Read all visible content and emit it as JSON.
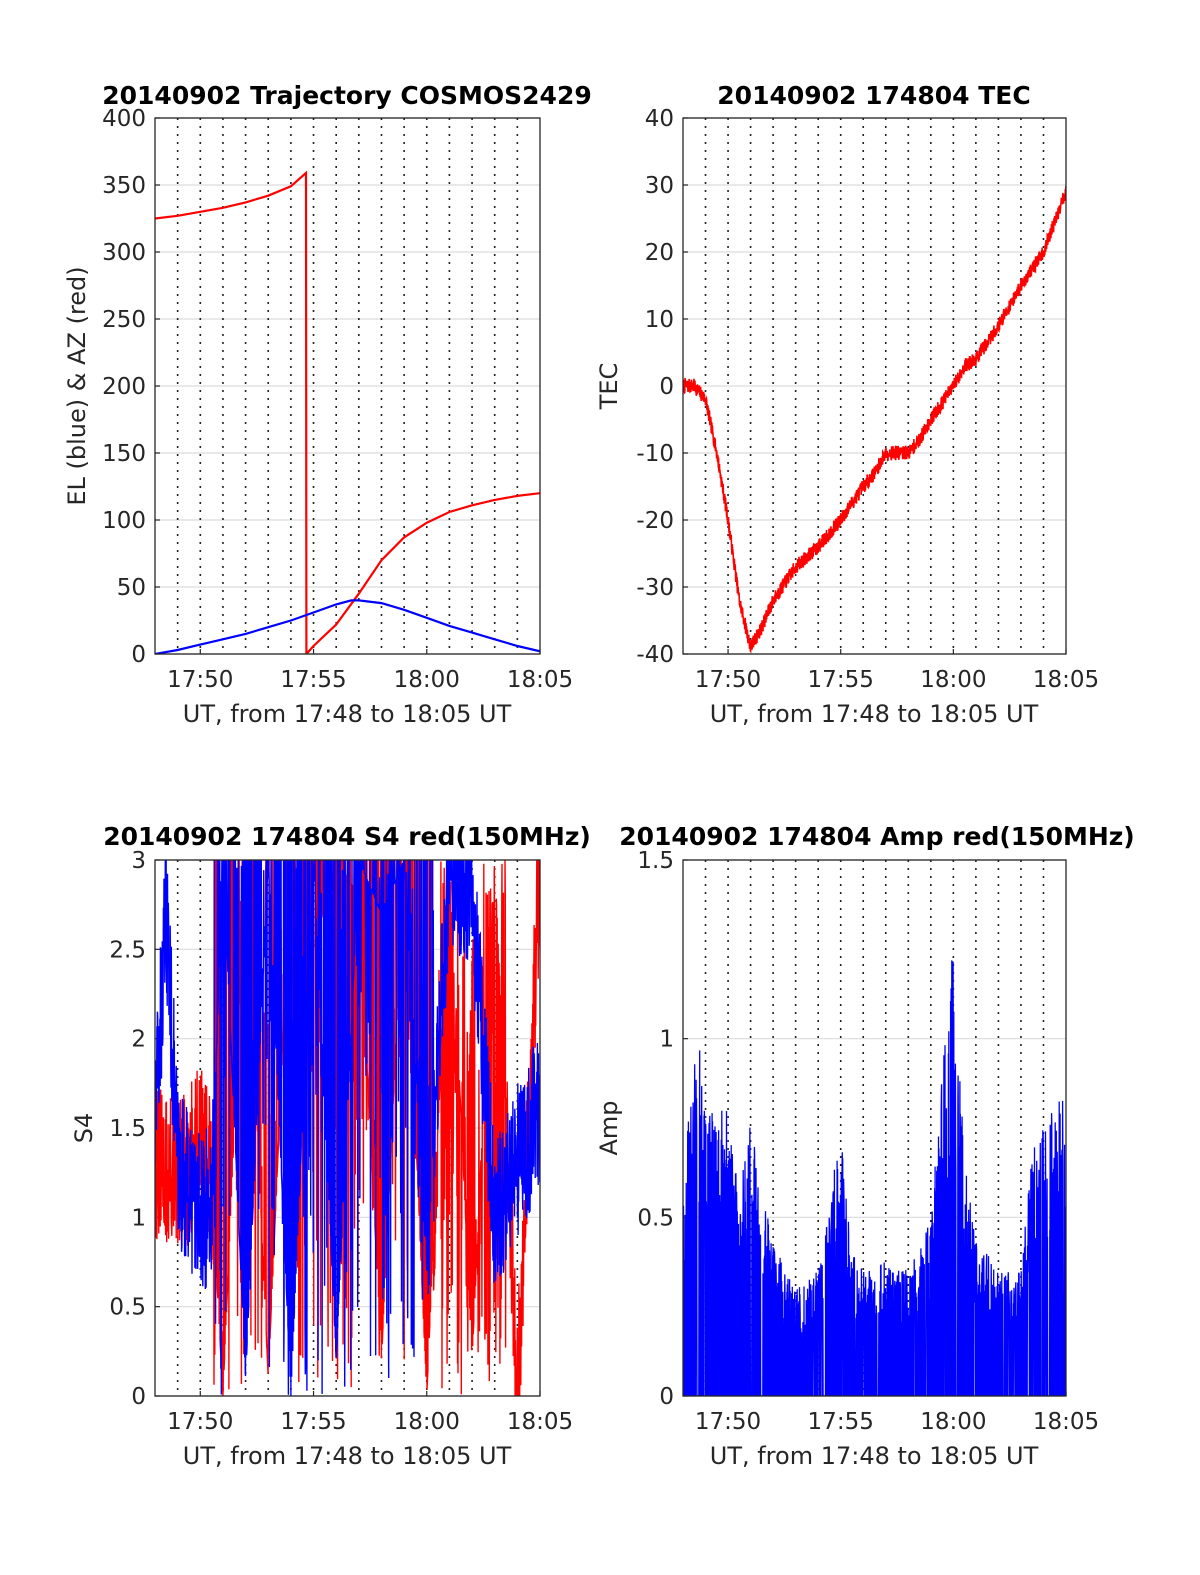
{
  "chart_data": [
    {
      "type": "line",
      "title": "20140902 Trajectory COSMOS2429",
      "xlabel": "UT, from 17:48 to 18:05 UT",
      "ylabel": "EL (blue) & AZ (red)",
      "x_range": [
        "17:48",
        "18:05"
      ],
      "xlim": [
        0,
        17
      ],
      "x_ticks": [
        "17:50",
        "17:55",
        "18:00",
        "18:05"
      ],
      "ylim": [
        0,
        400
      ],
      "y_ticks": [
        "0",
        "50",
        "100",
        "150",
        "200",
        "250",
        "300",
        "350",
        "400"
      ],
      "grid": true,
      "series": [
        {
          "name": "AZ",
          "color": "#ff0000",
          "x": [
            "17:48",
            "17:49",
            "17:50",
            "17:51",
            "17:52",
            "17:53",
            "17:54",
            "17:54:40",
            "17:54:41",
            "17:55",
            "17:56",
            "17:57",
            "17:58",
            "17:59",
            "18:00",
            "18:01",
            "18:02",
            "18:03",
            "18:04",
            "18:05"
          ],
          "values": [
            325,
            327,
            330,
            333,
            337,
            342,
            349,
            359,
            0,
            6,
            22,
            45,
            70,
            87,
            98,
            106,
            111,
            115,
            118,
            120
          ]
        },
        {
          "name": "EL",
          "color": "#0000ff",
          "x": [
            "17:48",
            "17:49",
            "17:50",
            "17:51",
            "17:52",
            "17:53",
            "17:54",
            "17:55",
            "17:56",
            "17:56:40",
            "17:57",
            "17:58",
            "17:59",
            "18:00",
            "18:01",
            "18:02",
            "18:03",
            "18:04",
            "18:05"
          ],
          "values": [
            0,
            3,
            7,
            11,
            15,
            20,
            25,
            31,
            37,
            40,
            40,
            38,
            33,
            27,
            21,
            16,
            11,
            6,
            2
          ]
        }
      ]
    },
    {
      "type": "line",
      "title": "20140902 174804 TEC",
      "xlabel": "UT, from 17:48 to 18:05 UT",
      "ylabel": "TEC",
      "x_range": [
        "17:48",
        "18:05"
      ],
      "xlim": [
        0,
        17
      ],
      "x_ticks": [
        "17:50",
        "17:55",
        "18:00",
        "18:05"
      ],
      "ylim": [
        -40,
        40
      ],
      "y_ticks": [
        "-40",
        "-30",
        "-20",
        "-10",
        "0",
        "10",
        "20",
        "30",
        "40"
      ],
      "grid": true,
      "series": [
        {
          "color": "#ff0000",
          "x": [
            "17:48",
            "17:48:30",
            "17:49",
            "17:49:30",
            "17:50",
            "17:50:30",
            "17:51",
            "17:51:30",
            "17:52",
            "17:53",
            "17:54",
            "17:55",
            "17:56",
            "17:56:30",
            "17:57",
            "17:57:30",
            "17:58",
            "17:58:30",
            "17:59",
            "18:00",
            "18:00:30",
            "18:01",
            "18:02",
            "18:03",
            "18:04",
            "18:05"
          ],
          "values": [
            0,
            0,
            -2,
            -10,
            -20,
            -32,
            -39,
            -36,
            -32,
            -27,
            -24,
            -20,
            -15,
            -13,
            -10,
            -10,
            -10,
            -8,
            -5,
            0,
            3,
            4,
            9,
            15,
            20,
            29
          ]
        }
      ]
    },
    {
      "type": "line",
      "title": "20140902 174804 S4 red(150MHz)",
      "xlabel": "UT, from 17:48 to 18:05 UT",
      "ylabel": "S4",
      "x_range": [
        "17:48",
        "18:05"
      ],
      "xlim": [
        0,
        17
      ],
      "x_ticks": [
        "17:50",
        "17:55",
        "18:00",
        "18:05"
      ],
      "ylim": [
        0,
        3
      ],
      "y_ticks": [
        "0",
        "0.5",
        "1",
        "1.5",
        "2",
        "2.5",
        "3"
      ],
      "grid": true,
      "series": [
        {
          "color": "#ff0000",
          "x": [
            "17:48",
            "17:49",
            "17:50",
            "17:50:30",
            "17:51",
            "17:52",
            "17:53",
            "17:54",
            "17:55",
            "17:56",
            "17:57",
            "17:58",
            "17:59",
            "18:00",
            "18:01",
            "18:02",
            "18:03",
            "18:04",
            "18:05"
          ],
          "values": [
            1.3,
            1.2,
            1.4,
            1.2,
            0.0,
            3.0,
            0.1,
            3.0,
            2.5,
            3.0,
            2.8,
            0.2,
            3.0,
            0.0,
            3.0,
            0.2,
            3.0,
            0.0,
            3.0
          ]
        },
        {
          "color": "#0000ff",
          "x": [
            "17:48",
            "17:48:30",
            "17:49",
            "17:50",
            "17:50:30",
            "17:51",
            "17:52",
            "17:53",
            "17:54",
            "17:55",
            "17:56",
            "17:57",
            "17:58",
            "17:59",
            "18:00",
            "18:01",
            "18:02",
            "18:03",
            "18:04",
            "18:05"
          ],
          "values": [
            1.5,
            2.7,
            1.3,
            1.0,
            1.1,
            3.0,
            0.1,
            3.0,
            0.0,
            3.0,
            0.2,
            3.0,
            2.7,
            3.0,
            0.7,
            3.0,
            2.8,
            1.0,
            1.3,
            1.6
          ]
        }
      ]
    },
    {
      "type": "line",
      "title": "20140902 174804 Amp red(150MHz)",
      "xlabel": "UT, from 17:48 to 18:05 UT",
      "ylabel": "Amp",
      "x_range": [
        "17:48",
        "18:05"
      ],
      "xlim": [
        0,
        17
      ],
      "x_ticks": [
        "17:50",
        "17:55",
        "18:00",
        "18:05"
      ],
      "ylim": [
        0,
        1.5
      ],
      "y_ticks": [
        "0",
        "0.5",
        "1",
        "1.5"
      ],
      "grid": true,
      "series": [
        {
          "color": "#0000ff",
          "x": [
            "17:48",
            "17:48:30",
            "17:49",
            "17:49:30",
            "17:50",
            "17:50:30",
            "17:51",
            "17:51:30",
            "17:52",
            "17:52:30",
            "17:53",
            "17:54",
            "17:55",
            "17:55:30",
            "17:56",
            "17:57",
            "17:58",
            "17:59",
            "17:59:30",
            "18:00",
            "18:00:30",
            "18:01",
            "18:02",
            "18:03",
            "18:03:30",
            "18:04",
            "18:04:30",
            "18:05"
          ],
          "values": [
            0.6,
            1.03,
            0.9,
            0.8,
            0.8,
            0.55,
            0.8,
            0.6,
            0.45,
            0.35,
            0.3,
            0.35,
            0.75,
            0.4,
            0.35,
            0.38,
            0.35,
            0.5,
            0.9,
            1.3,
            0.65,
            0.45,
            0.35,
            0.35,
            0.7,
            0.75,
            0.82,
            0.84
          ]
        }
      ]
    }
  ]
}
